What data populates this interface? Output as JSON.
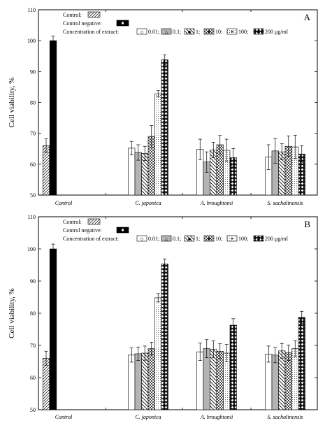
{
  "chart_data": [
    {
      "type": "bar",
      "panel_label": "A",
      "ylabel": "Cell viability, %",
      "ylim": [
        50,
        110
      ],
      "yticks": [
        50,
        60,
        70,
        80,
        90,
        100,
        110
      ],
      "categories": [
        "Control",
        "C. japonica",
        "A. broughtonii",
        "S. sachalinensis"
      ],
      "legend": {
        "control_label": "Control:",
        "control_negative_label": "Control negative:",
        "concentration_label": "Concentration of extract:",
        "concentration_items": [
          "0.01;",
          "0.1;",
          "1;",
          "10;",
          "100;",
          "200 μg/ml"
        ]
      },
      "control": {
        "value": 66,
        "error": 2.2
      },
      "control_negative": {
        "value": 100,
        "error": 1.5
      },
      "series": [
        {
          "name": "0.01",
          "values": [
            null,
            65.2,
            64.8,
            62.3
          ],
          "errors": [
            null,
            2.2,
            3.3,
            4.0
          ]
        },
        {
          "name": "0.1",
          "values": [
            null,
            63.8,
            60.7,
            64.3
          ],
          "errors": [
            null,
            2.5,
            3.3,
            4.0
          ]
        },
        {
          "name": "1",
          "values": [
            null,
            63.5,
            64.6,
            64.0
          ],
          "errors": [
            null,
            2.3,
            2.5,
            2.6
          ]
        },
        {
          "name": "10",
          "values": [
            null,
            69.0,
            66.3,
            65.8
          ],
          "errors": [
            null,
            3.5,
            3.0,
            3.3
          ]
        },
        {
          "name": "100",
          "values": [
            null,
            82.8,
            64.5,
            65.6
          ],
          "errors": [
            null,
            1.0,
            3.6,
            3.8
          ]
        },
        {
          "name": "200",
          "values": [
            null,
            93.8,
            62.1,
            63.3
          ],
          "errors": [
            null,
            1.6,
            3.0,
            2.7
          ]
        }
      ]
    },
    {
      "type": "bar",
      "panel_label": "B",
      "ylabel": "Cell viability, %",
      "ylim": [
        50,
        110
      ],
      "yticks": [
        50,
        60,
        70,
        80,
        90,
        100,
        110
      ],
      "categories": [
        "Control",
        "C. japonica",
        "A. broughtonii",
        "S. sachalinensis"
      ],
      "legend": {
        "control_label": "Control:",
        "control_negative_label": "Control negative:",
        "concentration_label": "Concentration of extract:",
        "concentration_items": [
          "0.01;",
          "0.1;",
          "1;",
          "10;",
          "100;",
          "200 μg/ml"
        ]
      },
      "control": {
        "value": 66,
        "error": 2.2
      },
      "control_negative": {
        "value": 100,
        "error": 1.5
      },
      "series": [
        {
          "name": "0.01",
          "values": [
            null,
            67.0,
            68.0,
            67.3
          ],
          "errors": [
            null,
            2.2,
            2.7,
            2.5
          ]
        },
        {
          "name": "0.1",
          "values": [
            null,
            67.4,
            69.0,
            67.0
          ],
          "errors": [
            null,
            2.1,
            2.8,
            2.4
          ]
        },
        {
          "name": "1",
          "values": [
            null,
            67.6,
            68.8,
            68.3
          ],
          "errors": [
            null,
            2.2,
            2.6,
            2.3
          ]
        },
        {
          "name": "10",
          "values": [
            null,
            69.0,
            68.2,
            67.7
          ],
          "errors": [
            null,
            2.0,
            2.3,
            2.4
          ]
        },
        {
          "name": "100",
          "values": [
            null,
            84.8,
            67.6,
            69.0
          ],
          "errors": [
            null,
            1.3,
            2.7,
            2.5
          ]
        },
        {
          "name": "200",
          "values": [
            null,
            95.3,
            76.3,
            78.7
          ],
          "errors": [
            null,
            1.6,
            2.0,
            1.9
          ]
        }
      ]
    }
  ]
}
